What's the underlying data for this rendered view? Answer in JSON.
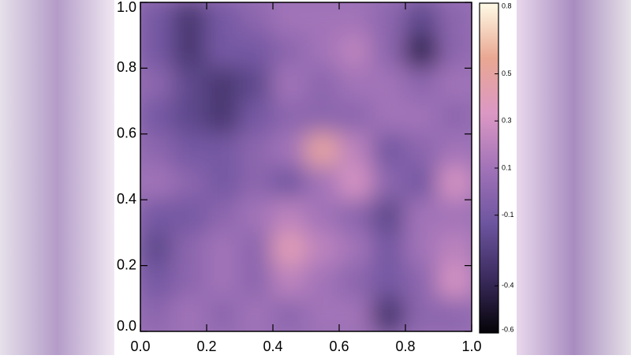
{
  "chart_data": {
    "type": "heatmap",
    "x": [
      0.05,
      0.15,
      0.25,
      0.35,
      0.45,
      0.55,
      0.65,
      0.75,
      0.85,
      0.95
    ],
    "y": [
      0.95,
      0.85,
      0.75,
      0.65,
      0.55,
      0.45,
      0.35,
      0.25,
      0.15,
      0.05
    ],
    "z": [
      [
        -0.1,
        -0.3,
        -0.1,
        0.0,
        0.1,
        0.1,
        0.1,
        0.0,
        -0.2,
        0.0
      ],
      [
        -0.1,
        -0.3,
        -0.1,
        -0.1,
        0.0,
        0.1,
        0.2,
        0.0,
        -0.4,
        0.0
      ],
      [
        0.0,
        -0.2,
        -0.3,
        -0.2,
        0.1,
        0.0,
        0.1,
        0.1,
        0.0,
        0.1
      ],
      [
        -0.1,
        -0.2,
        -0.3,
        -0.1,
        0.0,
        0.0,
        0.0,
        0.1,
        0.1,
        0.0
      ],
      [
        0.0,
        -0.1,
        -0.1,
        0.0,
        0.1,
        0.5,
        0.2,
        -0.1,
        0.0,
        0.1
      ],
      [
        0.1,
        0.0,
        -0.1,
        0.0,
        -0.1,
        0.1,
        0.3,
        0.0,
        -0.1,
        0.3
      ],
      [
        -0.1,
        -0.1,
        0.0,
        0.1,
        0.2,
        0.1,
        0.0,
        -0.2,
        0.1,
        0.1
      ],
      [
        -0.2,
        0.0,
        0.1,
        0.0,
        0.4,
        0.2,
        0.1,
        -0.1,
        0.1,
        0.2
      ],
      [
        -0.1,
        0.0,
        0.1,
        0.0,
        0.2,
        0.1,
        0.0,
        -0.1,
        0.0,
        0.3
      ],
      [
        0.0,
        0.1,
        0.0,
        0.1,
        0.0,
        0.1,
        0.1,
        -0.3,
        0.0,
        0.0
      ]
    ],
    "xlim": [
      0,
      1
    ],
    "ylim": [
      0,
      1
    ],
    "xticks": [
      {
        "value": 0,
        "label": "0.0"
      },
      0.2,
      0.4,
      0.6,
      0.8,
      {
        "value": 1,
        "label": "1.0"
      }
    ],
    "yticks": [
      {
        "value": 0,
        "label": "0.0"
      },
      0.2,
      0.4,
      0.6,
      0.8,
      {
        "value": 1,
        "label": "1.0"
      }
    ],
    "zlim": [
      -0.6,
      0.8
    ],
    "zticks": [
      -0.6,
      -0.4,
      -0.1,
      0.1,
      0.3,
      0.5,
      0.8
    ],
    "colormap": [
      "#050308",
      "#3b2b5e",
      "#6e55a0",
      "#a273b8",
      "#dc98c4",
      "#e9a792",
      "#fffbe6"
    ]
  }
}
